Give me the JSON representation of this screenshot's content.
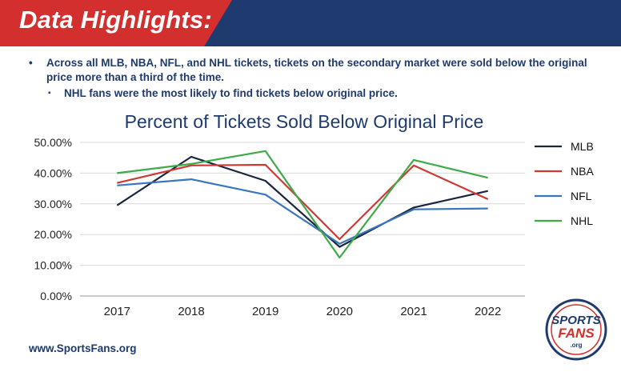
{
  "header": {
    "title": "Data Highlights:"
  },
  "bullets": {
    "main": "Across all MLB, NBA, NFL, and NHL tickets, tickets on the secondary market were sold below the original price more than a third of the time.",
    "sub": "NHL fans were the most likely to find tickets below original price."
  },
  "footer": {
    "url": "www.SportsFans.org"
  },
  "logo": {
    "line1": "SPORTS",
    "line2": "FANS",
    "line3": ".org"
  },
  "colors": {
    "banner_navy": "#1e3a6e",
    "banner_red": "#d32f2f"
  },
  "chart_data": {
    "type": "line",
    "title": "Percent of Tickets Sold Below Original Price",
    "x": [
      "2017",
      "2018",
      "2019",
      "2020",
      "2021",
      "2022"
    ],
    "ylim": [
      0,
      50
    ],
    "y_ticks": [
      "0.00%",
      "10.00%",
      "20.00%",
      "30.00%",
      "40.00%",
      "50.00%"
    ],
    "grid": true,
    "legend_position": "right",
    "series": [
      {
        "name": "MLB",
        "color": "#1a2540",
        "values": [
          29.5,
          45.3,
          37.5,
          16.0,
          28.8,
          34.2
        ]
      },
      {
        "name": "NBA",
        "color": "#cc3a33",
        "values": [
          36.8,
          42.5,
          42.7,
          18.5,
          42.5,
          31.5
        ]
      },
      {
        "name": "NFL",
        "color": "#3a76bd",
        "values": [
          36.0,
          38.0,
          33.0,
          17.0,
          28.2,
          28.5
        ]
      },
      {
        "name": "NHL",
        "color": "#3faa4a",
        "values": [
          40.0,
          43.0,
          47.2,
          12.5,
          44.3,
          38.5
        ]
      }
    ]
  }
}
